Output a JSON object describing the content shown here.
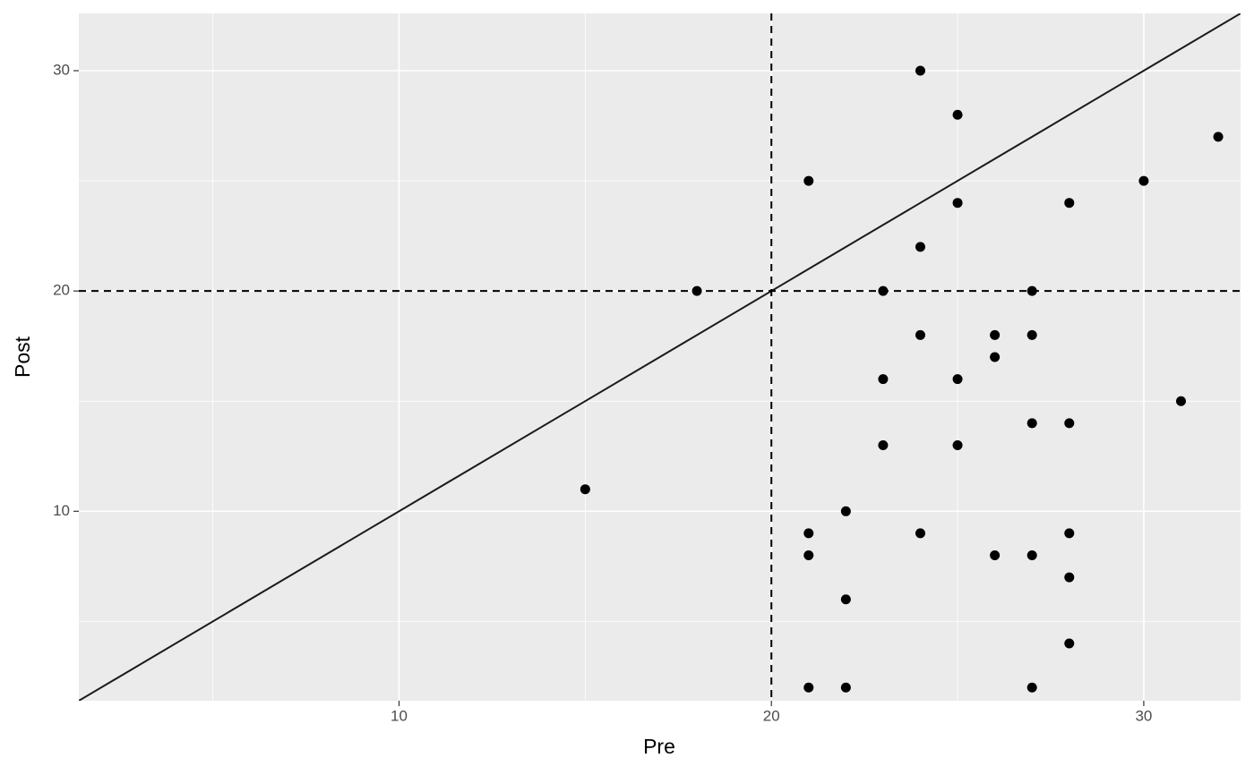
{
  "chart_data": {
    "type": "scatter",
    "x_label": "Pre",
    "y_label": "Post",
    "x": [
      15,
      18,
      21,
      21,
      21,
      21,
      22,
      22,
      22,
      23,
      23,
      23,
      24,
      24,
      24,
      24,
      25,
      25,
      25,
      25,
      26,
      26,
      26,
      27,
      27,
      27,
      27,
      27,
      28,
      28,
      28,
      28,
      28,
      30,
      31,
      32
    ],
    "values": [
      11,
      20,
      25,
      9,
      8,
      2,
      10,
      6,
      2,
      20,
      16,
      13,
      30,
      22,
      18,
      9,
      28,
      24,
      16,
      13,
      18,
      17,
      8,
      20,
      18,
      14,
      8,
      2,
      24,
      14,
      9,
      7,
      4,
      25,
      15,
      27
    ],
    "color": "#000000",
    "xlim": [
      1.4,
      32.6
    ],
    "ylim": [
      1.4,
      32.6
    ],
    "xticks": [
      10,
      20,
      30
    ],
    "yticks": [
      10,
      20,
      30
    ],
    "x_minor_grid": [
      5,
      15,
      25
    ],
    "y_minor_grid": [
      5,
      15,
      25
    ],
    "vline": 20,
    "hline": 20,
    "abline": {
      "slope": 1,
      "intercept": 0
    },
    "grid": true
  }
}
